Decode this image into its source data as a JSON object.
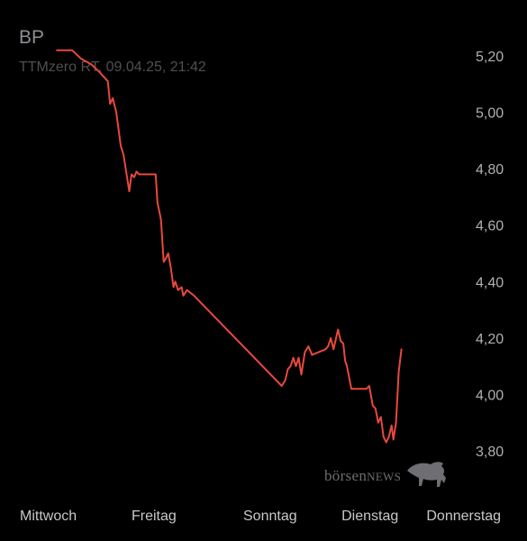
{
  "header": {
    "title": "BP",
    "subtitle": "TTMzero RT, 09.04.25, 21:42"
  },
  "colors": {
    "background": "#000000",
    "line": "#e8493c"
  },
  "watermark": {
    "text_lower": "börsen",
    "text_upper": "NEWS",
    "icon": "bull-icon"
  },
  "chart_data": {
    "type": "line",
    "title": "BP",
    "subtitle": "TTMzero RT, 09.04.25, 21:42",
    "xlabel": "",
    "ylabel": "",
    "ylim": [
      3.7,
      5.25
    ],
    "xlim": [
      0,
      100
    ],
    "grid": false,
    "y_ticks": [
      "5,20",
      "5,00",
      "4,80",
      "4,60",
      "4,40",
      "4,20",
      "4,00",
      "3,80"
    ],
    "y_tick_values": [
      5.2,
      5.0,
      4.8,
      4.6,
      4.4,
      4.2,
      4.0,
      3.8
    ],
    "x_ticks": [
      "Mittwoch",
      "Freitag",
      "Sonntag",
      "Dienstag",
      "Donnerstag"
    ],
    "x_tick_values": [
      0,
      25,
      50,
      72,
      91
    ],
    "series": [
      {
        "values": [
          [
            8.3,
            5.22
          ],
          [
            11.7,
            5.22
          ],
          [
            13.7,
            5.19
          ],
          [
            16.0,
            5.17
          ],
          [
            18.0,
            5.14
          ],
          [
            19.7,
            5.11
          ],
          [
            20.2,
            5.03
          ],
          [
            20.8,
            5.05
          ],
          [
            21.6,
            5.0
          ],
          [
            22.6,
            4.88
          ],
          [
            23.2,
            4.85
          ],
          [
            24.0,
            4.77
          ],
          [
            24.5,
            4.72
          ],
          [
            25.0,
            4.78
          ],
          [
            25.6,
            4.77
          ],
          [
            26.1,
            4.79
          ],
          [
            26.7,
            4.78
          ],
          [
            28.4,
            4.78
          ],
          [
            30.4,
            4.78
          ],
          [
            30.8,
            4.68
          ],
          [
            31.6,
            4.62
          ],
          [
            32.2,
            4.47
          ],
          [
            32.6,
            4.48
          ],
          [
            33.2,
            4.5
          ],
          [
            33.8,
            4.45
          ],
          [
            34.4,
            4.38
          ],
          [
            34.8,
            4.4
          ],
          [
            35.4,
            4.37
          ],
          [
            36.2,
            4.38
          ],
          [
            36.6,
            4.35
          ],
          [
            37.4,
            4.37
          ],
          [
            39.0,
            4.35
          ],
          [
            58.6,
            4.03
          ],
          [
            59.4,
            4.05
          ],
          [
            60.0,
            4.09
          ],
          [
            60.6,
            4.1
          ],
          [
            61.2,
            4.13
          ],
          [
            61.8,
            4.1
          ],
          [
            62.4,
            4.13
          ],
          [
            63.0,
            4.07
          ],
          [
            63.8,
            4.15
          ],
          [
            64.6,
            4.17
          ],
          [
            65.4,
            4.14
          ],
          [
            68.4,
            4.16
          ],
          [
            69.0,
            4.17
          ],
          [
            69.6,
            4.2
          ],
          [
            70.2,
            4.16
          ],
          [
            71.2,
            4.23
          ],
          [
            71.8,
            4.19
          ],
          [
            72.4,
            4.18
          ],
          [
            72.8,
            4.12
          ],
          [
            73.2,
            4.1
          ],
          [
            74.2,
            4.02
          ],
          [
            77.6,
            4.02
          ],
          [
            78.2,
            4.03
          ],
          [
            79.0,
            3.96
          ],
          [
            79.6,
            3.95
          ],
          [
            80.2,
            3.9
          ],
          [
            80.8,
            3.92
          ],
          [
            81.4,
            3.85
          ],
          [
            82.0,
            3.83
          ],
          [
            82.6,
            3.85
          ],
          [
            83.2,
            3.89
          ],
          [
            83.6,
            3.84
          ],
          [
            84.2,
            3.9
          ],
          [
            84.8,
            4.08
          ],
          [
            85.4,
            4.16
          ]
        ]
      }
    ]
  }
}
